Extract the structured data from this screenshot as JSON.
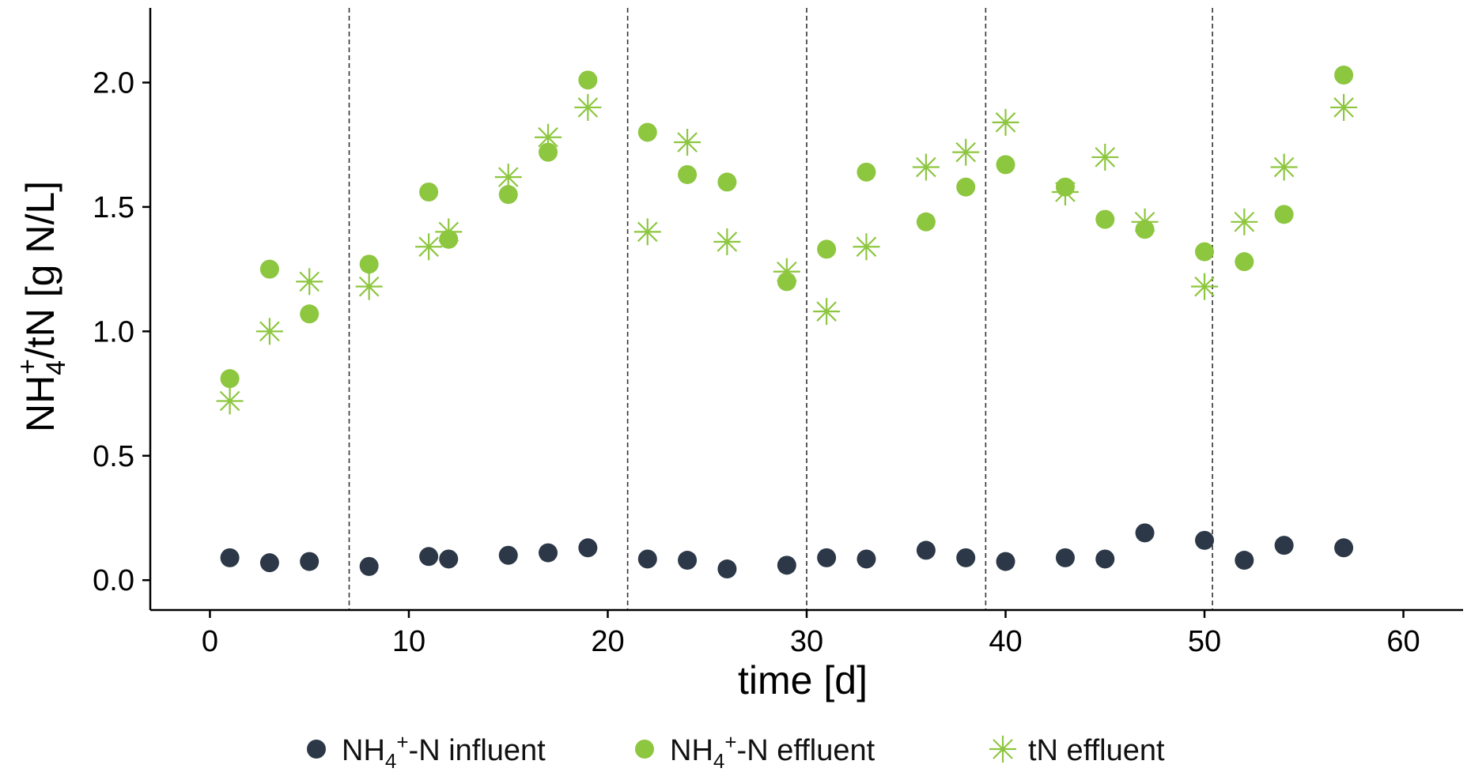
{
  "chart_data": {
    "type": "scatter",
    "xlabel": "time [d]",
    "ylabel": {
      "base": "NH",
      "sup": "+",
      "sub": "4",
      "rest": "/tN [g N/L]"
    },
    "xlim": [
      -3,
      63
    ],
    "ylim": [
      -0.12,
      2.3
    ],
    "x_ticks": [
      0,
      10,
      20,
      30,
      40,
      50,
      60
    ],
    "y_ticks": [
      0.0,
      0.5,
      1.0,
      1.5,
      2.0
    ],
    "x_tick_labels": [
      "0",
      "10",
      "20",
      "30",
      "40",
      "50",
      "60"
    ],
    "y_tick_labels": [
      "0.0",
      "0.5",
      "1.0",
      "1.5",
      "2.0"
    ],
    "grid": false,
    "legend_position": "bottom",
    "vertical_dashed_lines_x": [
      7,
      21,
      30,
      39,
      50.4
    ],
    "series": [
      {
        "name": "NH4+-N influent",
        "legend": {
          "a": "NH",
          "sub": "4",
          "sup": "+",
          "b": "-N influent"
        },
        "marker": "circle",
        "color": "#2c3847",
        "x": [
          1,
          3,
          5,
          8,
          11,
          12,
          15,
          17,
          19,
          22,
          24,
          26,
          29,
          31,
          33,
          36,
          38,
          40,
          43,
          45,
          47,
          50,
          52,
          54,
          57
        ],
        "y": [
          0.09,
          0.07,
          0.075,
          0.055,
          0.095,
          0.085,
          0.1,
          0.11,
          0.13,
          0.085,
          0.08,
          0.045,
          0.06,
          0.09,
          0.085,
          0.12,
          0.09,
          0.075,
          0.09,
          0.085,
          0.19,
          0.16,
          0.08,
          0.14,
          0.13
        ]
      },
      {
        "name": "NH4+-N effluent",
        "legend": {
          "a": "NH",
          "sub": "4",
          "sup": "+",
          "b": "-N effluent"
        },
        "marker": "circle",
        "color": "#8dc63f",
        "x": [
          1,
          3,
          5,
          8,
          11,
          12,
          15,
          17,
          19,
          22,
          24,
          26,
          29,
          31,
          33,
          36,
          38,
          40,
          43,
          45,
          47,
          50,
          52,
          54,
          57
        ],
        "y": [
          0.81,
          1.25,
          1.07,
          1.27,
          1.56,
          1.37,
          1.55,
          1.72,
          2.01,
          1.8,
          1.63,
          1.6,
          1.2,
          1.33,
          1.64,
          1.44,
          1.58,
          1.67,
          1.58,
          1.45,
          1.41,
          1.32,
          1.28,
          1.47,
          2.03
        ]
      },
      {
        "name": "tN effluent",
        "legend": {
          "a": "tN effluent",
          "sub": "",
          "sup": "",
          "b": ""
        },
        "marker": "asterisk",
        "color": "#8dc63f",
        "x": [
          1,
          3,
          5,
          8,
          11,
          12,
          15,
          17,
          19,
          22,
          24,
          26,
          29,
          31,
          33,
          36,
          38,
          40,
          43,
          45,
          47,
          50,
          52,
          54,
          57
        ],
        "y": [
          0.72,
          1.0,
          1.2,
          1.18,
          1.34,
          1.4,
          1.62,
          1.78,
          1.9,
          1.4,
          1.76,
          1.36,
          1.24,
          1.08,
          1.34,
          1.66,
          1.72,
          1.84,
          1.56,
          1.7,
          1.44,
          1.18,
          1.44,
          1.66,
          1.9
        ]
      }
    ]
  }
}
